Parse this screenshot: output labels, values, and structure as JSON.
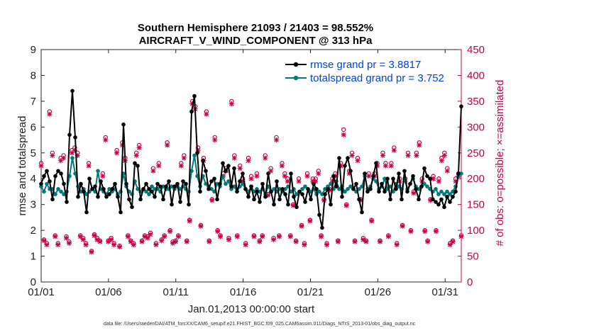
{
  "chart_data": {
    "type": "line",
    "title": "Southern Hemisphere 21093 / 21403 = 98.552%",
    "subtitle": "AIRCRAFT_V_WIND_COMPONENT @ 313 hPa",
    "xlabel": "Jan.01,2013 00:00:00 start",
    "ylabel": "rmse and totalspread",
    "y2label": "# of obs: o=possible; ×=assimilated",
    "footnote": "data file: /Users/raeder/DAI/ATM_forcXX/CAM6_setup/f.e21.FHIST_BGC.f09_025.CAM6assim.011/Diags_NTrS_2013-01/obs_diag_output.nc",
    "xlim": [
      0,
      31.2
    ],
    "ylim": [
      0,
      9
    ],
    "y2lim": [
      0,
      450
    ],
    "xticks": [
      0,
      5,
      10,
      15,
      20,
      25,
      30
    ],
    "xtick_labels": [
      "01/01",
      "01/06",
      "01/11",
      "01/16",
      "01/21",
      "01/26",
      "01/31"
    ],
    "yticks": [
      0,
      1,
      2,
      3,
      4,
      5,
      6,
      7,
      8,
      9
    ],
    "y2ticks": [
      0,
      50,
      100,
      150,
      200,
      250,
      300,
      350,
      400,
      450
    ],
    "legend_position": "top-right",
    "series": [
      {
        "name": "rmse grand pr = 3.8817",
        "color": "#000000",
        "axis": "left",
        "values": [
          3.8,
          4.1,
          4.3,
          3.9,
          3.2,
          4.1,
          4.3,
          4.2,
          3.8,
          3.1,
          5.7,
          7.4,
          5.6,
          3.3,
          3.8,
          3.5,
          2.7,
          4.0,
          3.6,
          3.7,
          3.3,
          3.9,
          3.6,
          3.3,
          3.4,
          3.6,
          3.8,
          3.3,
          2.7,
          6.1,
          3.8,
          3.2,
          2.9,
          4.6,
          4.5,
          3.2,
          3.6,
          3.8,
          3.6,
          3.5,
          3.3,
          3.8,
          3.7,
          3.2,
          3.7,
          3.9,
          3.0,
          3.7,
          3.8,
          3.1,
          3.9,
          3.8,
          3.0,
          6.6,
          7.2,
          5.0,
          3.5,
          4.7,
          4.3,
          3.6,
          3.9,
          4.0,
          3.2,
          3.8,
          4.6,
          4.3,
          4.5,
          3.7,
          4.4,
          3.5,
          3.9,
          4.2,
          3.6,
          3.3,
          3.7,
          3.2,
          3.5,
          3.1,
          3.8,
          3.3,
          4.2,
          3.5,
          3.0,
          3.9,
          3.2,
          3.6,
          3.4,
          3.0,
          4.2,
          3.3,
          2.9,
          3.5,
          3.4,
          3.1,
          3.6,
          3.2,
          3.8,
          3.6,
          2.6,
          2.1,
          3.4,
          3.6,
          3.0,
          4.1,
          3.7,
          4.8,
          3.3,
          4.5,
          4.8,
          4.3,
          3.6,
          3.8,
          3.2,
          2.7,
          4.2,
          3.5,
          3.6,
          4.1,
          4.6,
          3.5,
          3.8,
          3.5,
          4.0,
          3.2,
          4.0,
          3.6,
          4.2,
          3.2,
          4.3,
          3.5,
          3.8,
          4.1,
          3.6,
          3.2,
          3.7,
          4.4,
          4.1,
          4.0,
          3.2,
          3.1,
          3.0,
          3.2,
          2.9,
          3.3,
          3.1,
          3.3,
          3.5,
          4.2,
          6.8
        ]
      },
      {
        "name": "totalspread grand pr = 3.752",
        "color": "#007a78",
        "axis": "left",
        "values": [
          3.7,
          3.5,
          3.8,
          3.6,
          3.6,
          3.4,
          3.6,
          3.5,
          3.4,
          3.5,
          4.1,
          4.8,
          4.2,
          3.7,
          3.5,
          3.6,
          3.4,
          3.5,
          3.6,
          3.5,
          4.3,
          3.6,
          3.5,
          3.4,
          3.6,
          3.5,
          3.6,
          3.4,
          3.5,
          4.2,
          3.7,
          3.5,
          3.4,
          3.9,
          3.6,
          3.5,
          3.6,
          3.5,
          3.4,
          3.7,
          3.6,
          3.6,
          3.5,
          3.7,
          3.6,
          3.6,
          3.7,
          3.6,
          3.7,
          3.6,
          3.7,
          3.6,
          3.5,
          4.3,
          4.9,
          4.1,
          3.7,
          4.1,
          3.8,
          3.7,
          3.6,
          3.5,
          3.8,
          3.7,
          4.1,
          3.8,
          3.9,
          3.6,
          3.7,
          3.5,
          3.7,
          3.8,
          3.6,
          3.5,
          3.7,
          3.5,
          3.6,
          3.5,
          3.6,
          3.4,
          3.7,
          3.5,
          3.6,
          3.5,
          3.6,
          3.5,
          3.6,
          3.7,
          3.5,
          3.6,
          3.4,
          3.5,
          3.6,
          3.7,
          3.6,
          3.5,
          3.6,
          3.4,
          3.5,
          3.4,
          3.6,
          3.7,
          3.8,
          3.6,
          3.9,
          3.6,
          3.7,
          3.5,
          3.6,
          3.7,
          3.6,
          3.5,
          3.6,
          3.7,
          4.1,
          3.6,
          3.7,
          4.0,
          3.9,
          3.6,
          3.7,
          4.0,
          3.6,
          3.7,
          3.5,
          3.8,
          3.7,
          3.6,
          4.0,
          3.6,
          3.8,
          4.0,
          3.7,
          3.6,
          3.7,
          3.8,
          3.7,
          3.6,
          3.5,
          3.6,
          3.4,
          3.5,
          3.4,
          3.5,
          3.4,
          3.5,
          3.7,
          4.1,
          4.2
        ]
      },
      {
        "name": "obs possible",
        "color": "#c8004a",
        "axis": "right",
        "marker": "o",
        "values": [
          230,
          82,
          75,
          330,
          250,
          90,
          75,
          240,
          245,
          88,
          78,
          255,
          260,
          250,
          90,
          85,
          75,
          230,
          60,
          92,
          85,
          80,
          210,
          280,
          80,
          85,
          75,
          255,
          70,
          270,
          240,
          90,
          80,
          75,
          250,
          265,
          80,
          90,
          88,
          95,
          220,
          75,
          230,
          82,
          90,
          270,
          100,
          78,
          80,
          90,
          230,
          245,
          80,
          120,
          350,
          340,
          260,
          110,
          240,
          330,
          80,
          160,
          280,
          100,
          90,
          210,
          220,
          85,
          350,
          245,
          90,
          225,
          200,
          75,
          240,
          205,
          90,
          210,
          80,
          90,
          245,
          170,
          220,
          85,
          280,
          90,
          230,
          210,
          200,
          90,
          150,
          80,
          200,
          110,
          75,
          210,
          120,
          200,
          200,
          215,
          90,
          160,
          75,
          180,
          200,
          210,
          80,
          230,
          295,
          150,
          215,
          250,
          80,
          240,
          160,
          85,
          80,
          210,
          120,
          210,
          230,
          80,
          250,
          230,
          90,
          230,
          260,
          75,
          200,
          110,
          200,
          250,
          100,
          175,
          250,
          270,
          200,
          100,
          80,
          160,
          205,
          100,
          200,
          240,
          250,
          220,
          75,
          80,
          200,
          210,
          90
        ]
      },
      {
        "name": "obs assimilated",
        "color": "#c8004a",
        "axis": "right",
        "marker": "x",
        "values": [
          225,
          80,
          72,
          325,
          245,
          88,
          72,
          235,
          240,
          85,
          75,
          250,
          255,
          245,
          88,
          82,
          72,
          225,
          58,
          90,
          82,
          78,
          205,
          275,
          78,
          82,
          72,
          250,
          68,
          265,
          235,
          88,
          78,
          72,
          245,
          260,
          78,
          88,
          85,
          92,
          215,
          72,
          225,
          80,
          88,
          265,
          98,
          75,
          78,
          88,
          225,
          240,
          78,
          118,
          345,
          335,
          255,
          108,
          235,
          325,
          78,
          158,
          275,
          98,
          88,
          205,
          215,
          82,
          345,
          240,
          88,
          220,
          195,
          72,
          235,
          200,
          88,
          205,
          78,
          88,
          240,
          168,
          215,
          82,
          275,
          88,
          225,
          205,
          195,
          88,
          148,
          78,
          195,
          108,
          72,
          205,
          118,
          195,
          195,
          210,
          88,
          158,
          72,
          178,
          195,
          205,
          78,
          225,
          285,
          148,
          210,
          245,
          78,
          235,
          158,
          82,
          78,
          205,
          118,
          205,
          225,
          78,
          245,
          225,
          88,
          225,
          255,
          72,
          195,
          108,
          195,
          245,
          98,
          172,
          245,
          265,
          195,
          98,
          78,
          158,
          200,
          98,
          195,
          235,
          245,
          215,
          72,
          78,
          195,
          205,
          88
        ]
      }
    ]
  }
}
